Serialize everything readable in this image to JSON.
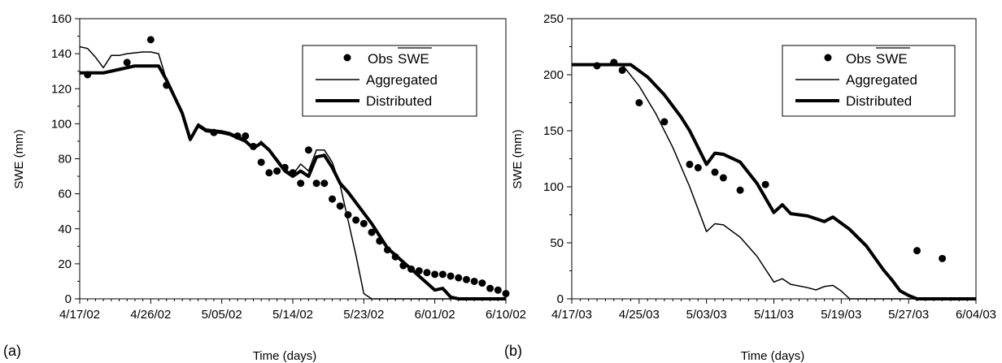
{
  "chart_data": [
    {
      "panel_label": "(a)",
      "type": "line",
      "xlabel": "Time (days)",
      "ylabel": "SWE (mm)",
      "xlim": [
        "2002-04-17",
        "2002-06-10"
      ],
      "ylim": [
        0,
        160
      ],
      "x_tick_labels": [
        "4/17/02",
        "4/26/02",
        "5/05/02",
        "5/14/02",
        "5/23/02",
        "6/01/02",
        "6/10/02"
      ],
      "y_ticks": [
        0,
        20,
        40,
        60,
        80,
        100,
        120,
        140,
        160
      ],
      "grid": false,
      "legend_placement": "top-right",
      "legend": {
        "obs_prefix": "Obs",
        "obs_overlined": "SWE",
        "aggregated": "Aggregated",
        "distributed": "Distributed"
      },
      "series": [
        {
          "name": "Obs SWE",
          "style": "markers",
          "points": [
            {
              "x": "2002-04-18",
              "y": 128
            },
            {
              "x": "2002-04-23",
              "y": 135
            },
            {
              "x": "2002-04-26",
              "y": 148
            },
            {
              "x": "2002-04-28",
              "y": 122
            },
            {
              "x": "2002-05-04",
              "y": 95
            },
            {
              "x": "2002-05-07",
              "y": 93
            },
            {
              "x": "2002-05-08",
              "y": 93
            },
            {
              "x": "2002-05-09",
              "y": 87
            },
            {
              "x": "2002-05-10",
              "y": 78
            },
            {
              "x": "2002-05-11",
              "y": 72
            },
            {
              "x": "2002-05-12",
              "y": 73
            },
            {
              "x": "2002-05-13",
              "y": 75
            },
            {
              "x": "2002-05-14",
              "y": 72
            },
            {
              "x": "2002-05-15",
              "y": 66
            },
            {
              "x": "2002-05-16",
              "y": 85
            },
            {
              "x": "2002-05-17",
              "y": 66
            },
            {
              "x": "2002-05-18",
              "y": 66
            },
            {
              "x": "2002-05-19",
              "y": 57
            },
            {
              "x": "2002-05-20",
              "y": 53
            },
            {
              "x": "2002-05-21",
              "y": 48
            },
            {
              "x": "2002-05-22",
              "y": 45
            },
            {
              "x": "2002-05-23",
              "y": 43
            },
            {
              "x": "2002-05-24",
              "y": 38
            },
            {
              "x": "2002-05-25",
              "y": 33
            },
            {
              "x": "2002-05-26",
              "y": 28
            },
            {
              "x": "2002-05-27",
              "y": 24
            },
            {
              "x": "2002-05-28",
              "y": 19
            },
            {
              "x": "2002-05-29",
              "y": 17
            },
            {
              "x": "2002-05-30",
              "y": 16
            },
            {
              "x": "2002-05-31",
              "y": 15
            },
            {
              "x": "2002-06-01",
              "y": 14
            },
            {
              "x": "2002-06-02",
              "y": 14
            },
            {
              "x": "2002-06-03",
              "y": 13
            },
            {
              "x": "2002-06-04",
              "y": 12
            },
            {
              "x": "2002-06-05",
              "y": 11
            },
            {
              "x": "2002-06-06",
              "y": 10
            },
            {
              "x": "2002-06-07",
              "y": 9
            },
            {
              "x": "2002-06-08",
              "y": 6
            },
            {
              "x": "2002-06-09",
              "y": 5
            },
            {
              "x": "2002-06-10",
              "y": 3
            }
          ]
        },
        {
          "name": "Aggregated",
          "style": "thin-line",
          "points": [
            {
              "x": "2002-04-17",
              "y": 144
            },
            {
              "x": "2002-04-18",
              "y": 143
            },
            {
              "x": "2002-04-19",
              "y": 138
            },
            {
              "x": "2002-04-20",
              "y": 132
            },
            {
              "x": "2002-04-21",
              "y": 139
            },
            {
              "x": "2002-04-22",
              "y": 139
            },
            {
              "x": "2002-04-23",
              "y": 140
            },
            {
              "x": "2002-04-25",
              "y": 141
            },
            {
              "x": "2002-04-26",
              "y": 141
            },
            {
              "x": "2002-04-27",
              "y": 140
            },
            {
              "x": "2002-04-28",
              "y": 125
            },
            {
              "x": "2002-04-30",
              "y": 106
            },
            {
              "x": "2002-05-01",
              "y": 91
            },
            {
              "x": "2002-05-02",
              "y": 100
            },
            {
              "x": "2002-05-03",
              "y": 97
            },
            {
              "x": "2002-05-05",
              "y": 96
            },
            {
              "x": "2002-05-06",
              "y": 95
            },
            {
              "x": "2002-05-07",
              "y": 93
            },
            {
              "x": "2002-05-08",
              "y": 91
            },
            {
              "x": "2002-05-09",
              "y": 86
            },
            {
              "x": "2002-05-10",
              "y": 90
            },
            {
              "x": "2002-05-11",
              "y": 85
            },
            {
              "x": "2002-05-12",
              "y": 80
            },
            {
              "x": "2002-05-13",
              "y": 74
            },
            {
              "x": "2002-05-14",
              "y": 71
            },
            {
              "x": "2002-05-15",
              "y": 77
            },
            {
              "x": "2002-05-16",
              "y": 73
            },
            {
              "x": "2002-05-17",
              "y": 85
            },
            {
              "x": "2002-05-18",
              "y": 85
            },
            {
              "x": "2002-05-19",
              "y": 78
            },
            {
              "x": "2002-05-20",
              "y": 65
            },
            {
              "x": "2002-05-21",
              "y": 45
            },
            {
              "x": "2002-05-22",
              "y": 25
            },
            {
              "x": "2002-05-23",
              "y": 3
            },
            {
              "x": "2002-05-24",
              "y": 0
            },
            {
              "x": "2002-06-10",
              "y": 0
            }
          ]
        },
        {
          "name": "Distributed",
          "style": "thick-line",
          "points": [
            {
              "x": "2002-04-17",
              "y": 129
            },
            {
              "x": "2002-04-20",
              "y": 129
            },
            {
              "x": "2002-04-22",
              "y": 131
            },
            {
              "x": "2002-04-24",
              "y": 133
            },
            {
              "x": "2002-04-26",
              "y": 133
            },
            {
              "x": "2002-04-27",
              "y": 133
            },
            {
              "x": "2002-04-28",
              "y": 125
            },
            {
              "x": "2002-04-30",
              "y": 106
            },
            {
              "x": "2002-05-01",
              "y": 91
            },
            {
              "x": "2002-05-02",
              "y": 99
            },
            {
              "x": "2002-05-03",
              "y": 96
            },
            {
              "x": "2002-05-05",
              "y": 95
            },
            {
              "x": "2002-05-06",
              "y": 94
            },
            {
              "x": "2002-05-07",
              "y": 92
            },
            {
              "x": "2002-05-08",
              "y": 90
            },
            {
              "x": "2002-05-09",
              "y": 86
            },
            {
              "x": "2002-05-10",
              "y": 89
            },
            {
              "x": "2002-05-11",
              "y": 85
            },
            {
              "x": "2002-05-12",
              "y": 79
            },
            {
              "x": "2002-05-13",
              "y": 73
            },
            {
              "x": "2002-05-14",
              "y": 70
            },
            {
              "x": "2002-05-15",
              "y": 73
            },
            {
              "x": "2002-05-16",
              "y": 70
            },
            {
              "x": "2002-05-17",
              "y": 81
            },
            {
              "x": "2002-05-18",
              "y": 82
            },
            {
              "x": "2002-05-19",
              "y": 75
            },
            {
              "x": "2002-05-20",
              "y": 66
            },
            {
              "x": "2002-05-21",
              "y": 61
            },
            {
              "x": "2002-05-22",
              "y": 55
            },
            {
              "x": "2002-05-24",
              "y": 43
            },
            {
              "x": "2002-05-26",
              "y": 29
            },
            {
              "x": "2002-05-28",
              "y": 21
            },
            {
              "x": "2002-05-30",
              "y": 13
            },
            {
              "x": "2002-06-01",
              "y": 5
            },
            {
              "x": "2002-06-02",
              "y": 6
            },
            {
              "x": "2002-06-03",
              "y": 1
            },
            {
              "x": "2002-06-04",
              "y": 0
            },
            {
              "x": "2002-06-10",
              "y": 0
            }
          ]
        }
      ]
    },
    {
      "panel_label": "(b)",
      "type": "line",
      "xlabel": "Time (days)",
      "ylabel": "SWE (mm)",
      "xlim": [
        "2003-04-17",
        "2003-06-04"
      ],
      "ylim": [
        0,
        250
      ],
      "x_tick_labels": [
        "4/17/03",
        "4/25/03",
        "5/03/03",
        "5/11/03",
        "5/19/03",
        "5/27/03",
        "6/04/03"
      ],
      "y_ticks": [
        0,
        50,
        100,
        150,
        200,
        250
      ],
      "grid": false,
      "legend_placement": "top-right",
      "legend": {
        "obs_prefix": "Obs",
        "obs_overlined": "SWE",
        "aggregated": "Aggregated",
        "distributed": "Distributed"
      },
      "series": [
        {
          "name": "Obs SWE",
          "style": "markers",
          "points": [
            {
              "x": "2003-04-20",
              "y": 208
            },
            {
              "x": "2003-04-22",
              "y": 211
            },
            {
              "x": "2003-04-23",
              "y": 204
            },
            {
              "x": "2003-04-25",
              "y": 175
            },
            {
              "x": "2003-04-28",
              "y": 158
            },
            {
              "x": "2003-05-01",
              "y": 120
            },
            {
              "x": "2003-05-02",
              "y": 117
            },
            {
              "x": "2003-05-04",
              "y": 113
            },
            {
              "x": "2003-05-05",
              "y": 108
            },
            {
              "x": "2003-05-07",
              "y": 97
            },
            {
              "x": "2003-05-10",
              "y": 102
            },
            {
              "x": "2003-05-28",
              "y": 43
            },
            {
              "x": "2003-05-31",
              "y": 36
            }
          ]
        },
        {
          "name": "Aggregated",
          "style": "thin-line",
          "points": [
            {
              "x": "2003-04-17",
              "y": 209
            },
            {
              "x": "2003-04-23",
              "y": 209
            },
            {
              "x": "2003-04-25",
              "y": 190
            },
            {
              "x": "2003-04-27",
              "y": 165
            },
            {
              "x": "2003-04-29",
              "y": 135
            },
            {
              "x": "2003-05-01",
              "y": 100
            },
            {
              "x": "2003-05-03",
              "y": 60
            },
            {
              "x": "2003-05-04",
              "y": 67
            },
            {
              "x": "2003-05-05",
              "y": 66
            },
            {
              "x": "2003-05-07",
              "y": 55
            },
            {
              "x": "2003-05-09",
              "y": 38
            },
            {
              "x": "2003-05-11",
              "y": 15
            },
            {
              "x": "2003-05-12",
              "y": 18
            },
            {
              "x": "2003-05-13",
              "y": 13
            },
            {
              "x": "2003-05-15",
              "y": 10
            },
            {
              "x": "2003-05-16",
              "y": 8
            },
            {
              "x": "2003-05-17",
              "y": 11
            },
            {
              "x": "2003-05-18",
              "y": 12
            },
            {
              "x": "2003-05-19",
              "y": 7
            },
            {
              "x": "2003-05-20",
              "y": 0
            },
            {
              "x": "2003-06-04",
              "y": 0
            }
          ]
        },
        {
          "name": "Distributed",
          "style": "thick-line",
          "points": [
            {
              "x": "2003-04-17",
              "y": 209
            },
            {
              "x": "2003-04-24",
              "y": 209
            },
            {
              "x": "2003-04-26",
              "y": 198
            },
            {
              "x": "2003-04-28",
              "y": 182
            },
            {
              "x": "2003-04-30",
              "y": 162
            },
            {
              "x": "2003-05-01",
              "y": 150
            },
            {
              "x": "2003-05-03",
              "y": 120
            },
            {
              "x": "2003-05-04",
              "y": 130
            },
            {
              "x": "2003-05-05",
              "y": 129
            },
            {
              "x": "2003-05-07",
              "y": 122
            },
            {
              "x": "2003-05-09",
              "y": 103
            },
            {
              "x": "2003-05-11",
              "y": 77
            },
            {
              "x": "2003-05-12",
              "y": 84
            },
            {
              "x": "2003-05-13",
              "y": 76
            },
            {
              "x": "2003-05-15",
              "y": 74
            },
            {
              "x": "2003-05-17",
              "y": 69
            },
            {
              "x": "2003-05-18",
              "y": 73
            },
            {
              "x": "2003-05-20",
              "y": 62
            },
            {
              "x": "2003-05-22",
              "y": 47
            },
            {
              "x": "2003-05-24",
              "y": 26
            },
            {
              "x": "2003-05-25",
              "y": 17
            },
            {
              "x": "2003-05-26",
              "y": 7
            },
            {
              "x": "2003-05-27",
              "y": 3
            },
            {
              "x": "2003-05-28",
              "y": 0
            },
            {
              "x": "2003-06-04",
              "y": 0
            }
          ]
        }
      ]
    }
  ]
}
